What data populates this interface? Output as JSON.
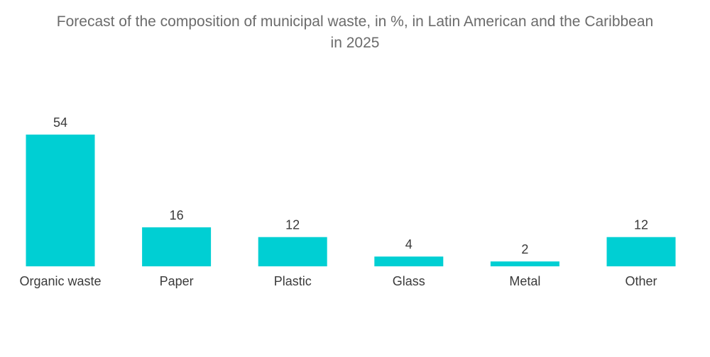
{
  "chart_data": {
    "type": "bar",
    "title_line1": "Forecast of the composition of municipal waste, in %, in Latin American and the Caribbean",
    "title_line2": "in 2025",
    "xlabel": "",
    "ylabel": "",
    "ylim": [
      0,
      54
    ],
    "grid": false,
    "categories": [
      "Organic waste",
      "Paper",
      "Plastic",
      "Glass",
      "Metal",
      "Other"
    ],
    "values": [
      54,
      16,
      12,
      4,
      2,
      12
    ],
    "color": "#00cfd3"
  }
}
